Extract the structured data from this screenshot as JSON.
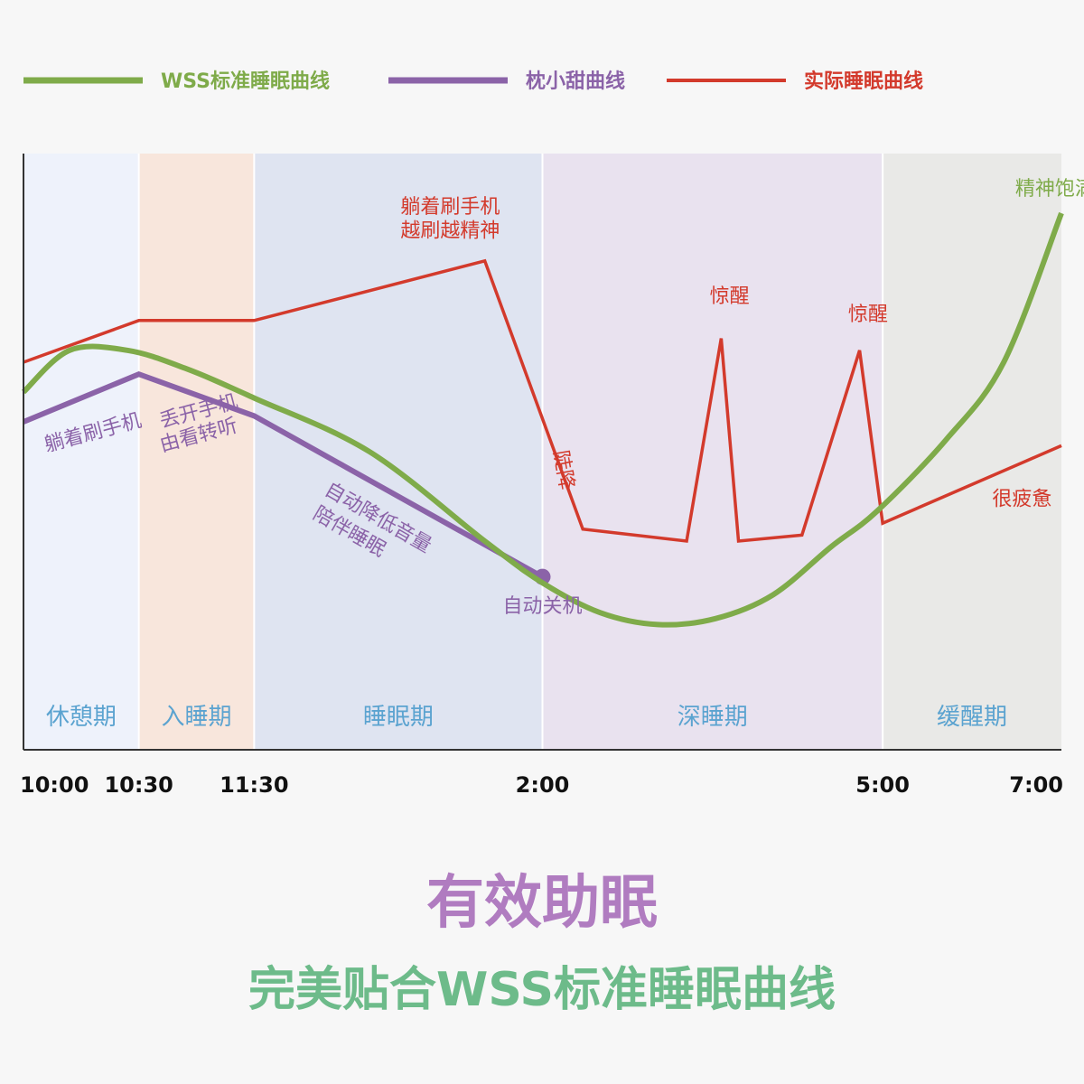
{
  "chart_data": {
    "type": "line",
    "title": "有效助眠",
    "subtitle": "完美贴合WSS标准睡眠曲线",
    "x": [
      "10:00",
      "10:30",
      "11:30",
      "2:00",
      "5:00",
      "7:00"
    ],
    "xlabel": "",
    "ylabel": "",
    "grid": false,
    "legend": "top",
    "phases": [
      {
        "label": "休憩期",
        "start": "10:00",
        "end": "10:30",
        "color": "#eef2fb"
      },
      {
        "label": "入睡期",
        "start": "10:30",
        "end": "11:30",
        "color": "#f8e6dc"
      },
      {
        "label": "睡眠期",
        "start": "11:30",
        "end": "2:00",
        "color": "#dfe4f1"
      },
      {
        "label": "深睡期",
        "start": "2:00",
        "end": "5:00",
        "color": "#e9e2ef"
      },
      {
        "label": "缓醒期",
        "start": "5:00",
        "end": "7:00",
        "color": "#e9e9e7"
      }
    ],
    "series": [
      {
        "name": "WSS标准睡眠曲线",
        "color": "#7fab4a",
        "smooth": true,
        "points": [
          [
            0,
            0.6
          ],
          [
            0.4,
            0.67
          ],
          [
            0.9,
            0.67
          ],
          [
            1.4,
            0.64
          ],
          [
            2,
            0.59
          ],
          [
            3,
            0.5
          ],
          [
            4,
            0.35
          ],
          [
            4.5,
            0.28
          ],
          [
            5,
            0.23
          ],
          [
            5.5,
            0.21
          ],
          [
            6,
            0.22
          ],
          [
            6.5,
            0.26
          ],
          [
            7,
            0.34
          ],
          [
            7.4,
            0.4
          ],
          [
            8,
            0.52
          ],
          [
            8.5,
            0.65
          ],
          [
            9,
            0.9
          ]
        ],
        "annotations": [
          {
            "text": "精神饱满",
            "at": [
              8.6,
              0.93
            ]
          }
        ]
      },
      {
        "name": "枕小甜曲线",
        "color": "#8b63a8",
        "smooth": false,
        "points": [
          [
            0,
            0.55
          ],
          [
            1,
            0.63
          ],
          [
            2,
            0.56
          ],
          [
            4.5,
            0.29
          ]
        ],
        "end_marker": true,
        "annotations": [
          {
            "text": "躺着刷手机",
            "at": [
              0.2,
              0.5
            ]
          },
          {
            "text": "丢开手机",
            "at": [
              1.2,
              0.54
            ]
          },
          {
            "text": "由看转听",
            "at": [
              1.2,
              0.5
            ]
          },
          {
            "text": "自动降低音量",
            "at": [
              2.6,
              0.43
            ]
          },
          {
            "text": "陪伴睡眠",
            "at": [
              2.5,
              0.39
            ]
          },
          {
            "text": "自动关机",
            "at": [
              4.5,
              0.23
            ]
          }
        ]
      },
      {
        "name": "实际睡眠曲线",
        "color": "#d33a2c",
        "smooth": false,
        "points": [
          [
            0,
            0.65
          ],
          [
            1,
            0.72
          ],
          [
            2,
            0.72
          ],
          [
            4,
            0.82
          ],
          [
            4.85,
            0.37
          ],
          [
            5.75,
            0.35
          ],
          [
            6.05,
            0.69
          ],
          [
            6.2,
            0.35
          ],
          [
            6.75,
            0.36
          ],
          [
            7.25,
            0.67
          ],
          [
            7.45,
            0.38
          ],
          [
            9,
            0.51
          ]
        ],
        "annotations": [
          {
            "text": "躺着刷手机",
            "at": [
              3.7,
              0.9
            ]
          },
          {
            "text": "越刷越精神",
            "at": [
              3.7,
              0.86
            ]
          },
          {
            "text": "陡降",
            "at": [
              4.6,
              0.5
            ]
          },
          {
            "text": "惊醒",
            "at": [
              5.95,
              0.75
            ]
          },
          {
            "text": "惊醒",
            "at": [
              7.15,
              0.72
            ]
          },
          {
            "text": "很疲惫",
            "at": [
              8.4,
              0.41
            ]
          }
        ]
      }
    ]
  },
  "colors": {
    "band_label": "#5ba3d0",
    "axis": "#333333",
    "divider": "#ffffff",
    "subtitle": "#6dbb8a",
    "title": "#b07cc0"
  }
}
